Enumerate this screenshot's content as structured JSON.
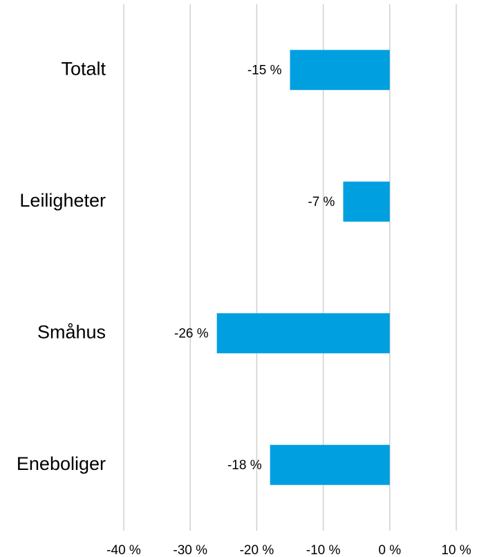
{
  "chart_data": {
    "type": "hbar",
    "categories": [
      "Totalt",
      "Leiligheter",
      "Småhus",
      "Eneboliger"
    ],
    "values": [
      -15,
      -7,
      -26,
      -18
    ],
    "value_labels": [
      "-15 %",
      "-7 %",
      "-26 %",
      "-18 %"
    ],
    "color": "#009fe0",
    "xlim": [
      -40,
      10
    ],
    "xticks": [
      {
        "value": -40,
        "label": "-40 %"
      },
      {
        "value": -30,
        "label": "-30 %"
      },
      {
        "value": -20,
        "label": "-20 %"
      },
      {
        "value": -10,
        "label": "-10 %"
      },
      {
        "value": 0,
        "label": "0 %"
      },
      {
        "value": 10,
        "label": "10 %"
      }
    ],
    "grid": true
  }
}
